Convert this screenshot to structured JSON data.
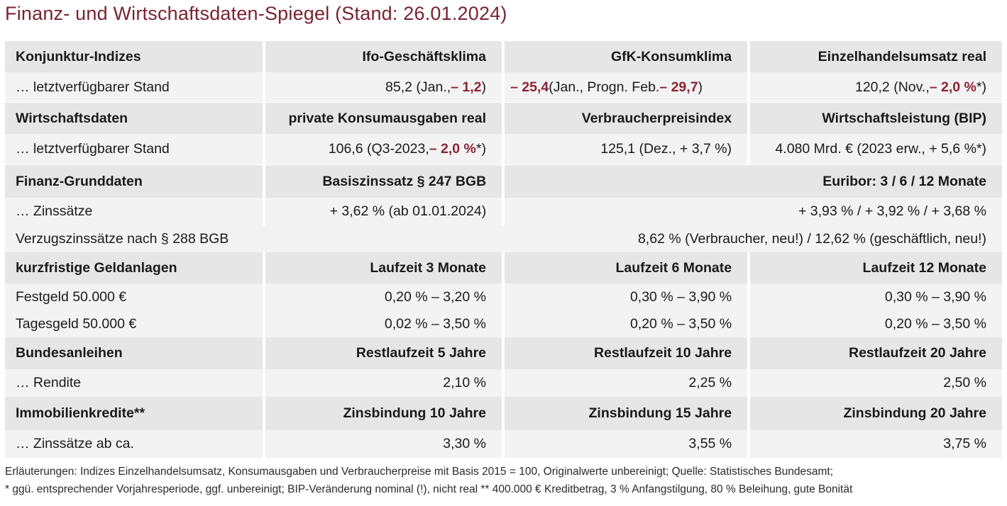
{
  "title": "Finanz- und Wirtschaftsdaten-Spiegel (Stand: 26.01.2024)",
  "konjunktur": {
    "header": [
      "Konjunktur-Indizes",
      "Ifo-Geschäftsklima",
      "GfK-Konsumklima",
      "Einzelhandelsumsatz real"
    ],
    "label": "… letztverfügbarer Stand",
    "ifo_a": "85,2 (Jan., ",
    "ifo_b": "– 1,2",
    "ifo_c": ")",
    "gfk_a": "– 25,4",
    "gfk_b": " (Jan., Progn. Feb. ",
    "gfk_c": "– 29,7",
    "gfk_d": ")",
    "ehu_a": "120,2 (Nov., ",
    "ehu_b": "– 2,0 %",
    "ehu_c": "*)"
  },
  "wirtschaft": {
    "header": [
      "Wirtschaftsdaten",
      "private Konsumausgaben real",
      "Verbraucherpreisindex",
      "Wirtschaftsleistung (BIP)"
    ],
    "label": "… letztverfügbarer Stand",
    "kons_a": "106,6 (Q3-2023, ",
    "kons_b": "– 2,0 %",
    "kons_c": "*)",
    "vpi": "125,1 (Dez., + 3,7 %)",
    "bip": "4.080 Mrd. € (2023 erw., + 5,6 %*)"
  },
  "finanz": {
    "header": [
      "Finanz-Grunddaten",
      "Basiszinssatz § 247 BGB",
      "Euribor: 3 / 6 / 12 Monate"
    ],
    "label": "… Zinssätze",
    "basis": "+ 3,62 % (ab 01.01.2024)",
    "euribor": "+ 3,93 % / + 3,92 % / + 3,68 %",
    "verzug_label": "Verzugszinssätze nach § 288 BGB",
    "verzug_value": "8,62 % (Verbraucher, neu!) / 12,62 % (geschäftlich, neu!)"
  },
  "geldanlagen": {
    "header": [
      "kurzfristige Geldanlagen",
      "Laufzeit 3 Monate",
      "Laufzeit 6 Monate",
      "Laufzeit 12 Monate"
    ],
    "rows": [
      [
        "Festgeld 50.000 €",
        "0,20 % – 3,20 %",
        "0,30 % – 3,90 %",
        "0,30 % – 3,90 %"
      ],
      [
        "Tagesgeld 50.000 €",
        "0,02 % – 3,50 %",
        "0,20 % – 3,50 %",
        "0,20 % – 3,50 %"
      ]
    ]
  },
  "anleihen": {
    "header": [
      "Bundesanleihen",
      "Restlaufzeit 5 Jahre",
      "Restlaufzeit 10 Jahre",
      "Restlaufzeit 20 Jahre"
    ],
    "row": [
      "… Rendite",
      "2,10 %",
      "2,25 %",
      "2,50 %"
    ]
  },
  "immobilien": {
    "header": [
      "Immobilienkredite**",
      "Zinsbindung 10 Jahre",
      "Zinsbindung 15 Jahre",
      "Zinsbindung 20 Jahre"
    ],
    "row": [
      "… Zinssätze ab ca.",
      "3,30 %",
      "3,55 %",
      "3,75 %"
    ]
  },
  "footnotes": [
    "Erläuterungen: Indizes Einzelhandelsumsatz, Konsumausgaben und Verbraucherpreise mit Basis 2015 = 100, Originalwerte unbereinigt; Quelle: Statistisches Bundesamt;",
    "* ggü. entsprechender Vorjahresperiode, ggf. unbereinigt; BIP-Veränderung nominal (!), nicht real   ** 400.000 € Kreditbetrag, 3 % Anfangstilgung, 80 % Beleihung, gute Bonität"
  ]
}
